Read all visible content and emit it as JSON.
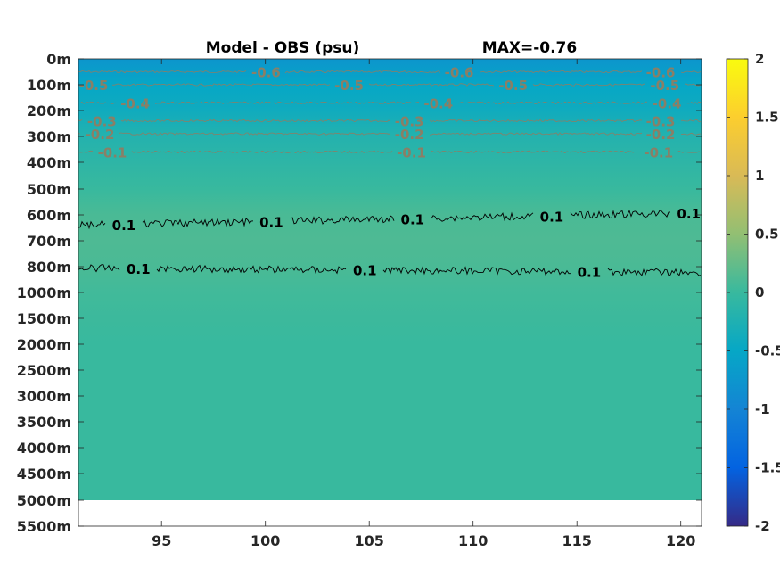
{
  "chart_data": {
    "type": "heatmap",
    "title": "Model - OBS (psu)",
    "subtitle": "MAX=-0.76",
    "x": {
      "ticks": [
        95,
        100,
        105,
        110,
        115,
        120
      ],
      "range": [
        91,
        121
      ]
    },
    "y": {
      "ticks": [
        "0m",
        "100m",
        "200m",
        "300m",
        "400m",
        "500m",
        "600m",
        "700m",
        "800m",
        "1000m",
        "1500m",
        "2000m",
        "2500m",
        "3000m",
        "3500m",
        "4000m",
        "4500m",
        "5000m",
        "5500m"
      ],
      "data_extent": "0m to 5000m"
    },
    "colorbar": {
      "ticks": [
        2,
        1.5,
        1,
        0.5,
        0,
        -0.5,
        -1,
        -1.5,
        -2
      ],
      "range": [
        -2,
        2
      ],
      "colormap": "parula"
    },
    "depth_profile": [
      {
        "depth": "0m",
        "value": -0.76
      },
      {
        "depth": "100m",
        "value": -0.5
      },
      {
        "depth": "200m",
        "value": -0.4
      },
      {
        "depth": "300m",
        "value": -0.2
      },
      {
        "depth": "400m",
        "value": -0.1
      },
      {
        "depth": "500m",
        "value": 0.0
      },
      {
        "depth": "600m",
        "value": 0.1
      },
      {
        "depth": "700m",
        "value": 0.12
      },
      {
        "depth": "800m",
        "value": 0.1
      },
      {
        "depth": "1000m",
        "value": 0.05
      },
      {
        "depth": "1500m",
        "value": 0.02
      },
      {
        "depth": "2000m",
        "value": 0.0
      },
      {
        "depth": "5000m",
        "value": 0.0
      }
    ],
    "contour_levels": [
      {
        "value": -0.6,
        "depth": "50m",
        "labels": [
          {
            "x": 99.3,
            "text": "-0.6"
          },
          {
            "x": 108.6,
            "text": "-0.6"
          },
          {
            "x": 118.3,
            "text": "-0.6"
          }
        ]
      },
      {
        "value": -0.5,
        "depth": "100m",
        "labels": [
          {
            "x": 91.0,
            "text": "-0.5"
          },
          {
            "x": 103.3,
            "text": "-0.5"
          },
          {
            "x": 111.2,
            "text": "-0.5"
          },
          {
            "x": 118.5,
            "text": "-0.5"
          }
        ]
      },
      {
        "value": -0.4,
        "depth": "170m",
        "labels": [
          {
            "x": 93.0,
            "text": "-0.4"
          },
          {
            "x": 107.6,
            "text": "-0.4"
          },
          {
            "x": 118.6,
            "text": "-0.4"
          }
        ]
      },
      {
        "value": -0.3,
        "depth": "240m",
        "labels": [
          {
            "x": 91.4,
            "text": "-0.3"
          },
          {
            "x": 106.2,
            "text": "-0.3"
          },
          {
            "x": 118.3,
            "text": "-0.3"
          }
        ]
      },
      {
        "value": -0.2,
        "depth": "290m",
        "labels": [
          {
            "x": 91.3,
            "text": "-0.2"
          },
          {
            "x": 106.2,
            "text": "-0.2"
          },
          {
            "x": 118.3,
            "text": "-0.2"
          }
        ]
      },
      {
        "value": -0.1,
        "depth": "360m",
        "labels": [
          {
            "x": 91.9,
            "text": "-0.1"
          },
          {
            "x": 106.3,
            "text": "-0.1"
          },
          {
            "x": 118.2,
            "text": "-0.1"
          }
        ]
      },
      {
        "value": 0.1,
        "depth": "640m",
        "labels": [
          {
            "x": 92.5,
            "text": "0.1"
          },
          {
            "x": 99.6,
            "text": "0.1"
          },
          {
            "x": 106.4,
            "text": "0.1"
          },
          {
            "x": 113.1,
            "text": "0.1"
          },
          {
            "x": 119.7,
            "text": "0.1"
          }
        ]
      },
      {
        "value": 0.1,
        "depth": "810m",
        "labels": [
          {
            "x": 93.2,
            "text": "0.1"
          },
          {
            "x": 104.1,
            "text": "0.1"
          },
          {
            "x": 114.9,
            "text": "0.1"
          }
        ]
      }
    ]
  }
}
